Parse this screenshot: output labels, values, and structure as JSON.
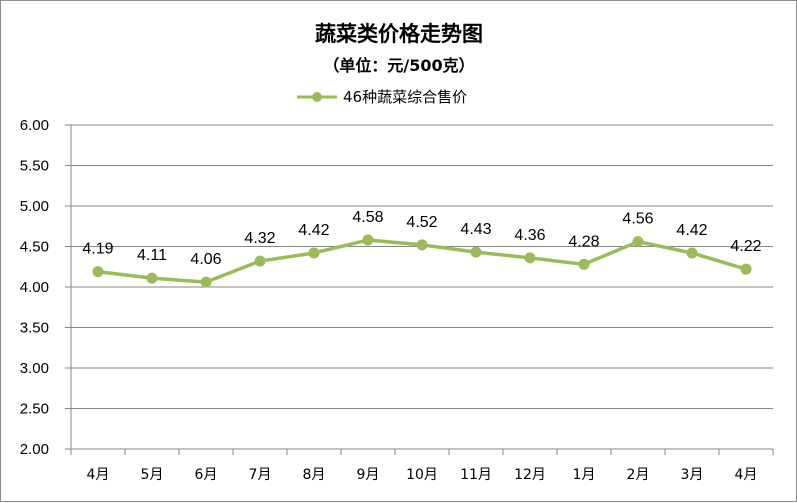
{
  "chart_data": {
    "type": "line",
    "title": "蔬菜类价格走势图",
    "subtitle": "（单位：元/500克）",
    "categories": [
      "4月",
      "5月",
      "6月",
      "7月",
      "8月",
      "9月",
      "10月",
      "11月",
      "12月",
      "1月",
      "2月",
      "3月",
      "4月"
    ],
    "series": [
      {
        "name": "46种蔬菜综合售价",
        "values": [
          4.19,
          4.11,
          4.06,
          4.32,
          4.42,
          4.58,
          4.52,
          4.43,
          4.36,
          4.28,
          4.56,
          4.42,
          4.22
        ],
        "labels": [
          "4.19",
          "4.11",
          "4.06",
          "4.32",
          "4.42",
          "4.58",
          "4.52",
          "4.43",
          "4.36",
          "4.28",
          "4.56",
          "4.42",
          "4.22"
        ],
        "color": "#9bbb59"
      }
    ],
    "ylim": [
      2.0,
      6.0
    ],
    "yticks": [
      "2.00",
      "2.50",
      "3.00",
      "3.50",
      "4.00",
      "4.50",
      "5.00",
      "5.50",
      "6.00"
    ],
    "xlabel": "",
    "ylabel": "",
    "grid": true,
    "legend_position": "top-center",
    "gridline_color": "#868686"
  }
}
